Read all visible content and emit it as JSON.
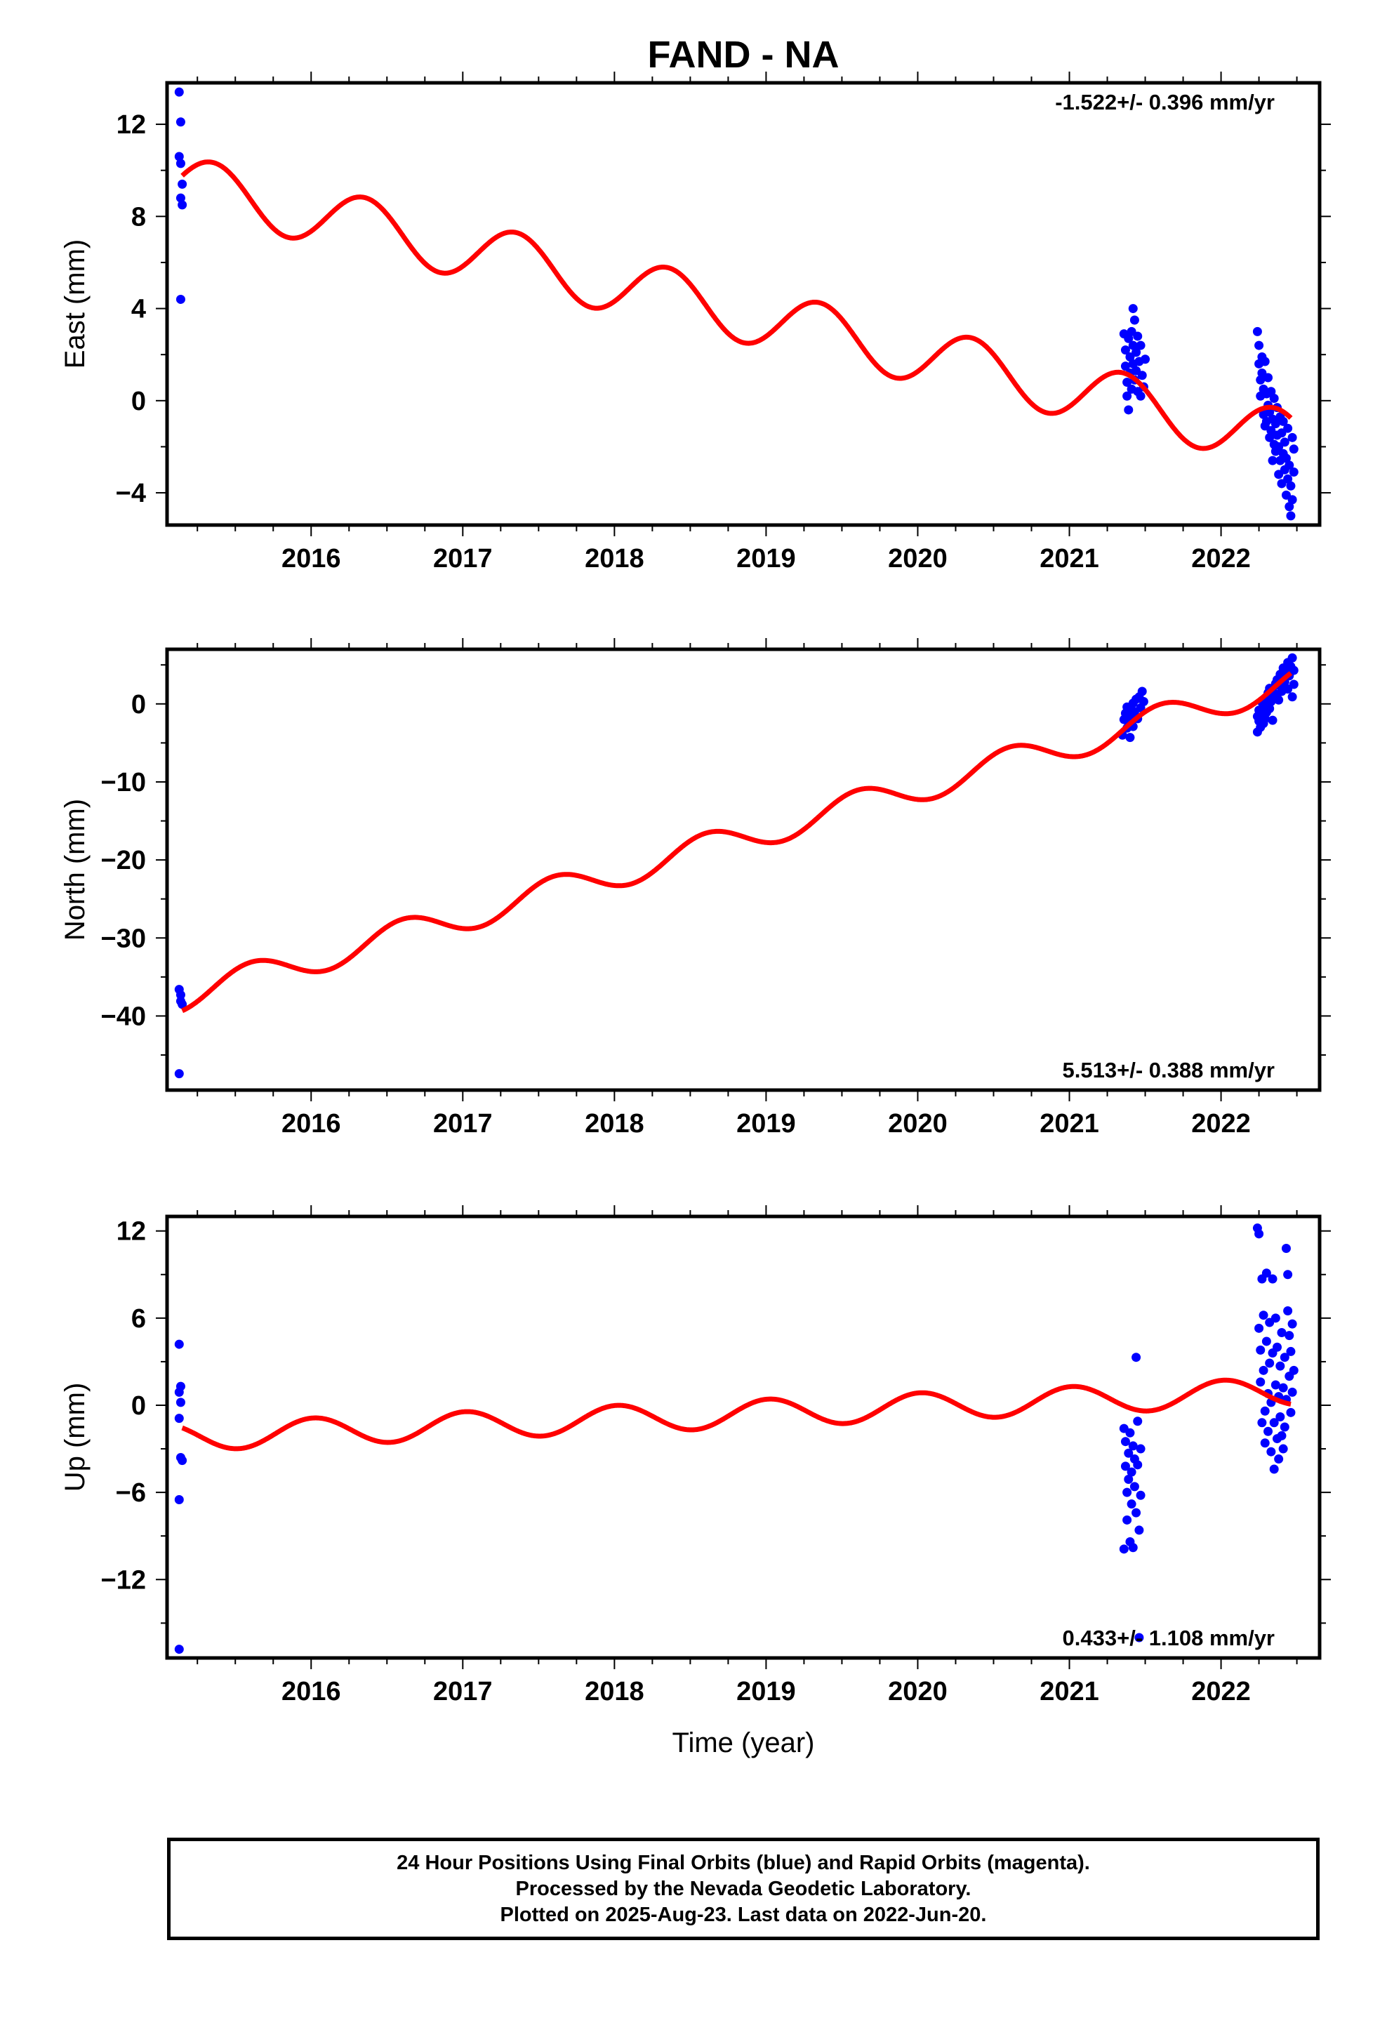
{
  "title": "FAND - NA",
  "xlabel": "Time (year)",
  "colors": {
    "data": "#0000ff",
    "model": "#ff0000",
    "frame": "#000000"
  },
  "footer": {
    "line1": "24 Hour Positions Using Final Orbits (blue) and Rapid Orbits (magenta).",
    "line2": "Processed by the Nevada Geodetic Laboratory.",
    "line3": "Plotted on 2025-Aug-23. Last data on 2022-Jun-20."
  },
  "chart_data": [
    {
      "type": "scatter",
      "name": "east",
      "ylabel": "East (mm)",
      "rate_label": "-1.522+/- 0.396 mm/yr",
      "rate_position": "top-right",
      "xlim": [
        2015.05,
        2022.65
      ],
      "ylim": [
        -5.4,
        13.8
      ],
      "xticks": [
        2016,
        2017,
        2018,
        2019,
        2020,
        2021,
        2022
      ],
      "yticks": [
        -4,
        0,
        4,
        8,
        12
      ],
      "series": [
        {
          "kind": "points",
          "points": [
            [
              2015.13,
              13.4
            ],
            [
              2015.14,
              12.1
            ],
            [
              2015.13,
              10.6
            ],
            [
              2015.14,
              10.3
            ],
            [
              2015.15,
              9.4
            ],
            [
              2015.14,
              8.8
            ],
            [
              2015.15,
              8.5
            ],
            [
              2015.14,
              4.4
            ],
            [
              2021.36,
              2.9
            ],
            [
              2021.37,
              2.2
            ],
            [
              2021.37,
              1.5
            ],
            [
              2021.38,
              0.8
            ],
            [
              2021.38,
              0.2
            ],
            [
              2021.39,
              -0.4
            ],
            [
              2021.39,
              2.7
            ],
            [
              2021.4,
              1.9
            ],
            [
              2021.4,
              1.2
            ],
            [
              2021.41,
              0.5
            ],
            [
              2021.41,
              3.0
            ],
            [
              2021.42,
              2.4
            ],
            [
              2021.42,
              4.0
            ],
            [
              2021.42,
              1.6
            ],
            [
              2021.43,
              0.9
            ],
            [
              2021.43,
              3.5
            ],
            [
              2021.44,
              2.1
            ],
            [
              2021.44,
              1.3
            ],
            [
              2021.45,
              0.4
            ],
            [
              2021.45,
              2.8
            ],
            [
              2021.46,
              1.7
            ],
            [
              2021.47,
              0.2
            ],
            [
              2021.47,
              2.4
            ],
            [
              2021.48,
              1.1
            ],
            [
              2021.49,
              0.6
            ],
            [
              2021.5,
              1.8
            ],
            [
              2022.24,
              3.0
            ],
            [
              2022.25,
              2.4
            ],
            [
              2022.25,
              1.6
            ],
            [
              2022.26,
              0.9
            ],
            [
              2022.26,
              0.2
            ],
            [
              2022.27,
              1.9
            ],
            [
              2022.27,
              1.2
            ],
            [
              2022.28,
              0.5
            ],
            [
              2022.28,
              -0.6
            ],
            [
              2022.29,
              -1.1
            ],
            [
              2022.29,
              1.7
            ],
            [
              2022.3,
              0.3
            ],
            [
              2022.3,
              -0.9
            ],
            [
              2022.31,
              1.0
            ],
            [
              2022.31,
              -0.2
            ],
            [
              2022.32,
              -1.6
            ],
            [
              2022.32,
              -0.5
            ],
            [
              2022.33,
              0.4
            ],
            [
              2022.33,
              -1.3
            ],
            [
              2022.34,
              -2.6
            ],
            [
              2022.34,
              -0.8
            ],
            [
              2022.35,
              -1.9
            ],
            [
              2022.35,
              0.1
            ],
            [
              2022.36,
              -1.0
            ],
            [
              2022.36,
              -2.2
            ],
            [
              2022.37,
              -0.3
            ],
            [
              2022.37,
              -1.5
            ],
            [
              2022.38,
              -3.2
            ],
            [
              2022.38,
              -2.0
            ],
            [
              2022.39,
              -0.7
            ],
            [
              2022.39,
              -2.6
            ],
            [
              2022.4,
              -1.4
            ],
            [
              2022.4,
              -3.6
            ],
            [
              2022.41,
              -2.3
            ],
            [
              2022.41,
              -0.9
            ],
            [
              2022.42,
              -3.0
            ],
            [
              2022.42,
              -1.8
            ],
            [
              2022.43,
              -4.1
            ],
            [
              2022.43,
              -2.5
            ],
            [
              2022.44,
              -3.4
            ],
            [
              2022.44,
              -1.2
            ],
            [
              2022.45,
              -4.6
            ],
            [
              2022.45,
              -2.8
            ],
            [
              2022.46,
              -5.0
            ],
            [
              2022.46,
              -3.7
            ],
            [
              2022.47,
              -1.6
            ],
            [
              2022.47,
              -4.3
            ],
            [
              2022.48,
              -2.1
            ],
            [
              2022.48,
              -3.1
            ]
          ]
        },
        {
          "kind": "model",
          "t0": 2015.15,
          "t1": 2022.46,
          "offset": 9.4,
          "rate": -1.522,
          "annual_amp": 1.25,
          "annual_phase": 0.3
        }
      ]
    },
    {
      "type": "scatter",
      "name": "north",
      "ylabel": "North (mm)",
      "rate_label": "5.513+/- 0.388 mm/yr",
      "rate_position": "bottom-right",
      "xlim": [
        2015.05,
        2022.65
      ],
      "ylim": [
        -49.5,
        7.0
      ],
      "xticks": [
        2016,
        2017,
        2018,
        2019,
        2020,
        2021,
        2022
      ],
      "yticks": [
        -40,
        -30,
        -20,
        -10,
        0
      ],
      "series": [
        {
          "kind": "points",
          "points": [
            [
              2015.13,
              -36.6
            ],
            [
              2015.14,
              -37.3
            ],
            [
              2015.14,
              -38.1
            ],
            [
              2015.15,
              -38.5
            ],
            [
              2015.13,
              -47.4
            ],
            [
              2021.35,
              -4.0
            ],
            [
              2021.36,
              -2.0
            ],
            [
              2021.37,
              -1.2
            ],
            [
              2021.38,
              -3.1
            ],
            [
              2021.38,
              -0.4
            ],
            [
              2021.39,
              -2.4
            ],
            [
              2021.4,
              -0.8
            ],
            [
              2021.4,
              -4.3
            ],
            [
              2021.41,
              -1.5
            ],
            [
              2021.42,
              0.1
            ],
            [
              2021.42,
              -2.9
            ],
            [
              2021.43,
              -1.0
            ],
            [
              2021.44,
              0.6
            ],
            [
              2021.45,
              -1.9
            ],
            [
              2021.46,
              0.9
            ],
            [
              2021.47,
              -0.5
            ],
            [
              2021.48,
              1.6
            ],
            [
              2021.49,
              0.3
            ],
            [
              2022.24,
              -1.6
            ],
            [
              2022.24,
              -3.6
            ],
            [
              2022.25,
              -2.2
            ],
            [
              2022.25,
              -0.8
            ],
            [
              2022.26,
              -3.0
            ],
            [
              2022.27,
              -1.4
            ],
            [
              2022.27,
              0.2
            ],
            [
              2022.28,
              -2.5
            ],
            [
              2022.28,
              -0.3
            ],
            [
              2022.29,
              -1.9
            ],
            [
              2022.3,
              0.6
            ],
            [
              2022.3,
              -1.1
            ],
            [
              2022.31,
              1.4
            ],
            [
              2022.32,
              -0.6
            ],
            [
              2022.32,
              2.0
            ],
            [
              2022.33,
              0.3
            ],
            [
              2022.34,
              -2.1
            ],
            [
              2022.34,
              1.7
            ],
            [
              2022.35,
              0.9
            ],
            [
              2022.36,
              2.6
            ],
            [
              2022.37,
              1.2
            ],
            [
              2022.37,
              3.1
            ],
            [
              2022.38,
              0.5
            ],
            [
              2022.39,
              2.3
            ],
            [
              2022.39,
              3.8
            ],
            [
              2022.4,
              1.6
            ],
            [
              2022.41,
              3.4
            ],
            [
              2022.41,
              4.6
            ],
            [
              2022.42,
              2.8
            ],
            [
              2022.43,
              4.1
            ],
            [
              2022.44,
              1.9
            ],
            [
              2022.44,
              5.3
            ],
            [
              2022.45,
              3.6
            ],
            [
              2022.46,
              4.8
            ],
            [
              2022.47,
              5.9
            ],
            [
              2022.47,
              0.9
            ],
            [
              2022.48,
              4.3
            ],
            [
              2022.48,
              2.5
            ]
          ]
        },
        {
          "kind": "model",
          "t0": 2015.15,
          "t1": 2022.46,
          "offset": -37.5,
          "rate": 5.513,
          "annual_amp": 1.9,
          "annual_phase": -1.3
        }
      ]
    },
    {
      "type": "scatter",
      "name": "up",
      "ylabel": "Up (mm)",
      "rate_label": "0.433+/- 1.108 mm/yr",
      "rate_position": "bottom-right",
      "xlim": [
        2015.05,
        2022.65
      ],
      "ylim": [
        -17.4,
        13.0
      ],
      "xticks": [
        2016,
        2017,
        2018,
        2019,
        2020,
        2021,
        2022
      ],
      "yticks": [
        -12,
        -6,
        0,
        6,
        12
      ],
      "series": [
        {
          "kind": "points",
          "points": [
            [
              2015.13,
              4.2
            ],
            [
              2015.14,
              1.3
            ],
            [
              2015.13,
              0.9
            ],
            [
              2015.14,
              0.2
            ],
            [
              2015.13,
              -0.9
            ],
            [
              2015.14,
              -3.6
            ],
            [
              2015.15,
              -3.8
            ],
            [
              2015.13,
              -6.5
            ],
            [
              2015.13,
              -16.8
            ],
            [
              2021.36,
              -1.6
            ],
            [
              2021.36,
              -9.9
            ],
            [
              2021.37,
              -4.2
            ],
            [
              2021.37,
              -2.5
            ],
            [
              2021.38,
              -6.0
            ],
            [
              2021.38,
              -7.9
            ],
            [
              2021.39,
              -3.3
            ],
            [
              2021.39,
              -5.1
            ],
            [
              2021.4,
              -9.4
            ],
            [
              2021.4,
              -1.9
            ],
            [
              2021.41,
              -4.6
            ],
            [
              2021.41,
              -6.8
            ],
            [
              2021.42,
              -2.8
            ],
            [
              2021.42,
              -9.8
            ],
            [
              2021.43,
              -5.6
            ],
            [
              2021.43,
              -3.7
            ],
            [
              2021.44,
              3.3
            ],
            [
              2021.44,
              -7.4
            ],
            [
              2021.45,
              -4.1
            ],
            [
              2021.45,
              -1.1
            ],
            [
              2021.46,
              -8.6
            ],
            [
              2021.46,
              -16.0
            ],
            [
              2021.47,
              -3.0
            ],
            [
              2021.47,
              -6.2
            ],
            [
              2022.24,
              12.2
            ],
            [
              2022.25,
              11.8
            ],
            [
              2022.25,
              5.3
            ],
            [
              2022.26,
              3.8
            ],
            [
              2022.26,
              1.6
            ],
            [
              2022.27,
              -1.2
            ],
            [
              2022.27,
              8.7
            ],
            [
              2022.28,
              6.2
            ],
            [
              2022.28,
              2.4
            ],
            [
              2022.29,
              -0.4
            ],
            [
              2022.29,
              -2.6
            ],
            [
              2022.3,
              9.1
            ],
            [
              2022.3,
              4.4
            ],
            [
              2022.31,
              0.8
            ],
            [
              2022.31,
              -1.8
            ],
            [
              2022.32,
              5.7
            ],
            [
              2022.32,
              2.9
            ],
            [
              2022.33,
              -3.2
            ],
            [
              2022.33,
              0.2
            ],
            [
              2022.34,
              8.7
            ],
            [
              2022.34,
              3.6
            ],
            [
              2022.35,
              -1.2
            ],
            [
              2022.35,
              -4.4
            ],
            [
              2022.36,
              6.0
            ],
            [
              2022.36,
              1.4
            ],
            [
              2022.37,
              -2.3
            ],
            [
              2022.37,
              4.0
            ],
            [
              2022.38,
              0.6
            ],
            [
              2022.38,
              -3.7
            ],
            [
              2022.39,
              2.7
            ],
            [
              2022.39,
              -0.8
            ],
            [
              2022.4,
              5.0
            ],
            [
              2022.4,
              -2.1
            ],
            [
              2022.41,
              1.2
            ],
            [
              2022.41,
              -3.0
            ],
            [
              2022.42,
              3.3
            ],
            [
              2022.42,
              -1.5
            ],
            [
              2022.43,
              10.8
            ],
            [
              2022.43,
              0.4
            ],
            [
              2022.44,
              6.5
            ],
            [
              2022.44,
              9.0
            ],
            [
              2022.45,
              2.0
            ],
            [
              2022.45,
              4.8
            ],
            [
              2022.46,
              -0.5
            ],
            [
              2022.46,
              3.7
            ],
            [
              2022.47,
              5.6
            ],
            [
              2022.47,
              0.9
            ],
            [
              2022.48,
              2.4
            ]
          ]
        },
        {
          "kind": "model",
          "t0": 2015.15,
          "t1": 2022.46,
          "offset": -2.2,
          "rate": 0.433,
          "annual_amp": 0.95,
          "annual_phase": 2.4
        }
      ]
    }
  ]
}
